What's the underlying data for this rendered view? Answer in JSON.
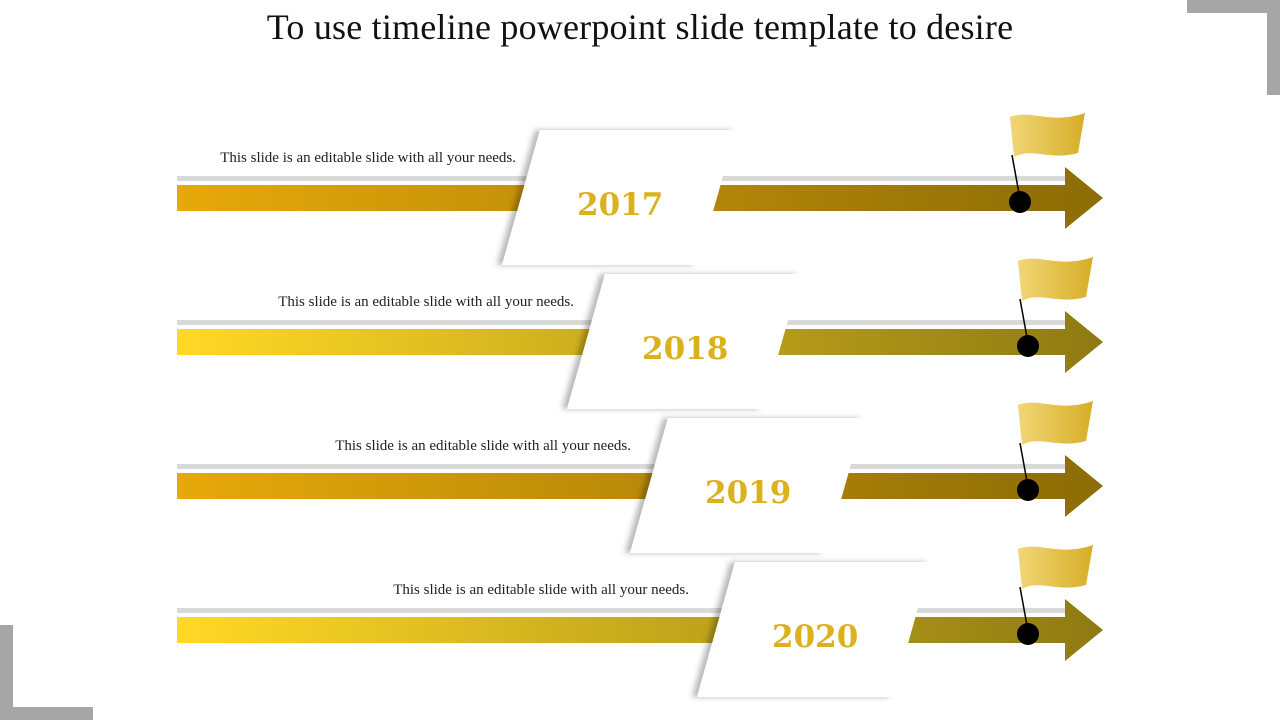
{
  "title": "To use timeline powerpoint slide template to desire",
  "colors": {
    "background": "#ffffff",
    "corner_frame": "#a6a6a6",
    "rail": "#d9d9d9",
    "flag_pole_dot": "#000000",
    "year_text": "#dcb21c"
  },
  "timeline": [
    {
      "year": "2017",
      "text": "This slide is an editable slide with all your needs.",
      "gradient": [
        "#e6a90a",
        "#8c6c06"
      ]
    },
    {
      "year": "2018",
      "text": "This slide is an editable slide with all your needs.",
      "gradient": [
        "#ffd926",
        "#8e7a12"
      ]
    },
    {
      "year": "2019",
      "text": "This slide is an editable slide with all your needs.",
      "gradient": [
        "#e6a90a",
        "#8c6c06"
      ]
    },
    {
      "year": "2020",
      "text": "This slide is an editable slide with all your needs.",
      "gradient": [
        "#ffd926",
        "#8e7a12"
      ]
    }
  ]
}
